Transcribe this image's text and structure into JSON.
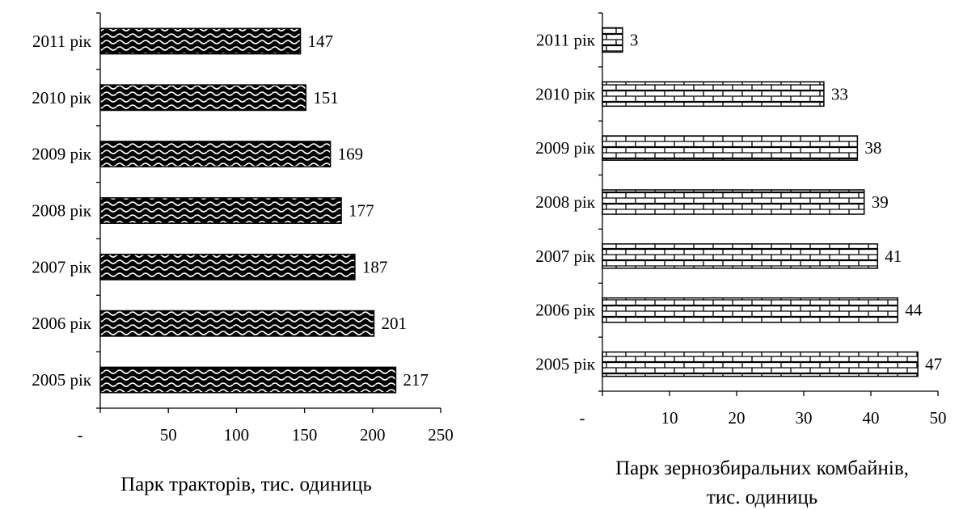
{
  "chart_data": [
    {
      "type": "bar",
      "orientation": "horizontal",
      "categories": [
        "2005 рік",
        "2006 рік",
        "2007 рік",
        "2008 рік",
        "2009 рік",
        "2010 рік",
        "2011 рік"
      ],
      "values": [
        217,
        201,
        187,
        177,
        169,
        151,
        147
      ],
      "xlabel": "Парк тракторів, тис. одиниць",
      "xlabel_lines": [
        "Парк тракторів, тис. одиниць"
      ],
      "ylabel": "",
      "xlim": [
        0,
        250
      ],
      "xticks": [
        0,
        50,
        100,
        150,
        200,
        250
      ],
      "xtick_labels": [
        "-",
        "50",
        "100",
        "150",
        "200",
        "250"
      ],
      "grid": false,
      "legend": "none",
      "bar_fill": "wave-pattern",
      "colors": {
        "bar_dark": "#000000",
        "bar_light": "#ffffff"
      }
    },
    {
      "type": "bar",
      "orientation": "horizontal",
      "categories": [
        "2005 рік",
        "2006 рік",
        "2007 рік",
        "2008 рік",
        "2009 рік",
        "2010 рік",
        "2011 рік"
      ],
      "values": [
        47,
        44,
        41,
        39,
        38,
        33,
        3
      ],
      "xlabel": "Парк зернозбиральних комбайнів, тис. одиниць",
      "xlabel_lines": [
        "Парк зернозбиральних комбайнів,",
        "тис. одиниць"
      ],
      "ylabel": "",
      "xlim": [
        0,
        50
      ],
      "xticks": [
        0,
        10,
        20,
        30,
        40,
        50
      ],
      "xtick_labels": [
        "-",
        "10",
        "20",
        "30",
        "40",
        "50"
      ],
      "grid": false,
      "legend": "none",
      "bar_fill": "brick-pattern",
      "colors": {
        "bar_dark": "#000000",
        "bar_light": "#ffffff"
      }
    }
  ]
}
